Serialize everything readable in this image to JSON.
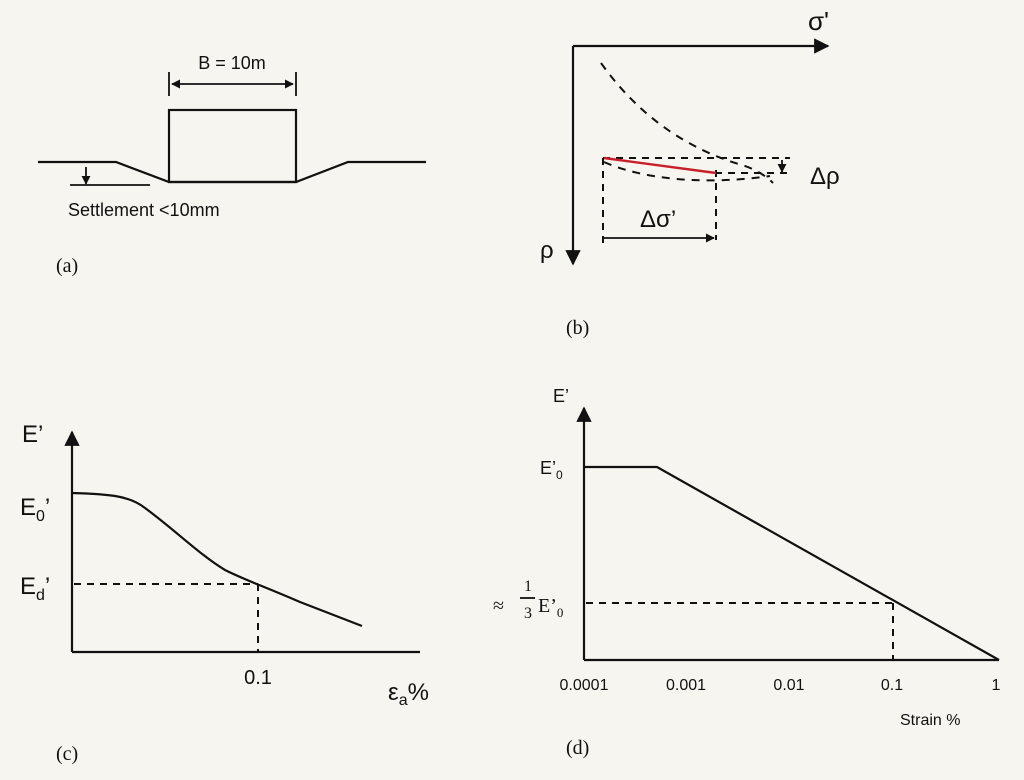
{
  "panel_a": {
    "width_label": "B = 10m",
    "settlement_label": "Settlement <10mm",
    "caption": "(a)"
  },
  "panel_b": {
    "x_axis_label": "σ'",
    "y_axis_label": "ρ",
    "delta_rho": "Δρ",
    "delta_sigma": "Δσ’",
    "caption": "(b)",
    "line_color": "#c8202a"
  },
  "panel_c": {
    "y_axis_label": "E’",
    "e0_label": "E",
    "e0_sub": "0",
    "e0_prime": "’",
    "ed_label": "E",
    "ed_sub": "d",
    "ed_prime": "’",
    "x_tick": "0.1",
    "x_axis_label": "ε",
    "x_axis_sub": "a",
    "x_axis_unit": "%",
    "caption": "(c)"
  },
  "panel_d": {
    "y_axis_label": "E’",
    "e0_label": "E’",
    "e0_sub": "0",
    "third_approx": "≈",
    "third_num": "1",
    "third_den": "3",
    "third_e": "E’",
    "third_sub": "0",
    "x_ticks": [
      "0.0001",
      "0.001",
      "0.01",
      "0.1",
      "1"
    ],
    "x_axis_label": "Strain %",
    "caption": "(d)"
  }
}
